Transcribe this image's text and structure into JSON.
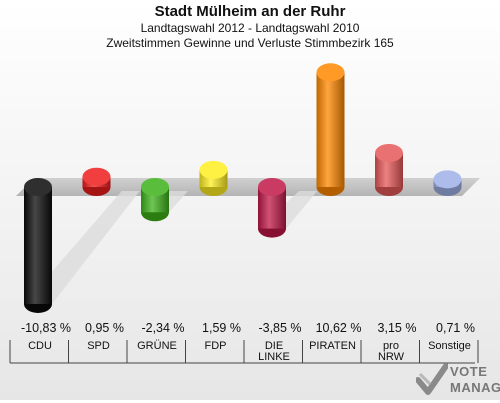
{
  "header": {
    "title": "Stadt Mülheim an der Ruhr",
    "subtitle1": "Landtagswahl 2012 - Landtagswahl 2010",
    "subtitle2": "Zweitstimmen Gewinne und Verluste Stimmbezirk 165"
  },
  "logo": {
    "line1": "VOTE",
    "line2": "MANAGER"
  },
  "chart_data": {
    "type": "bar",
    "title": "Stadt Mülheim an der Ruhr",
    "categories": [
      "CDU",
      "SPD",
      "GRÜNE",
      "FDP",
      "DIE LINKE",
      "PIRATEN",
      "pro NRW",
      "Sonstige"
    ],
    "category_lines": [
      [
        "CDU"
      ],
      [
        "SPD"
      ],
      [
        "GRÜNE"
      ],
      [
        "FDP"
      ],
      [
        "DIE",
        "LINKE"
      ],
      [
        "PIRATEN"
      ],
      [
        "pro",
        "NRW"
      ],
      [
        "Sonstige"
      ]
    ],
    "values": [
      -10.83,
      0.95,
      -2.34,
      1.59,
      -3.85,
      10.62,
      3.15,
      0.71
    ],
    "value_labels": [
      "-10,83 %",
      "0,95 %",
      "-2,34 %",
      "1,59 %",
      "-3,85 %",
      "10,62 %",
      "3,15 %",
      "0,71 %"
    ],
    "colors": [
      "#0a0a0a",
      "#ee1c1c",
      "#3db31a",
      "#ffee22",
      "#c01848",
      "#ff8800",
      "#e65858",
      "#a0b0e8"
    ],
    "ylim": [
      -11.5,
      11.5
    ],
    "grid": false,
    "legend": "none"
  }
}
